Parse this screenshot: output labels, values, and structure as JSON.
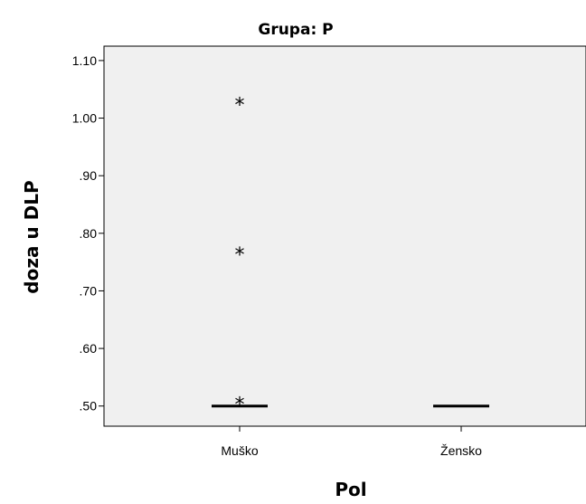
{
  "chart_data": {
    "type": "boxplot",
    "title": "Grupa: P",
    "xlabel": "Pol",
    "ylabel": "doza u DLP",
    "categories": [
      "Muško",
      "Žensko"
    ],
    "ylim": [
      0.465,
      1.125
    ],
    "yticks": [
      0.5,
      0.6,
      0.7,
      0.8,
      0.9,
      1.0,
      1.1
    ],
    "ytick_labels": [
      ".50",
      ".60",
      ".70",
      ".80",
      ".90",
      "1.00",
      "1.10"
    ],
    "boxes": [
      {
        "category": "Muško",
        "median": 0.5,
        "q1": 0.5,
        "q3": 0.5,
        "whisker_low": 0.5,
        "whisker_high": 0.5,
        "extremes": [
          1.03,
          0.77,
          0.51
        ]
      },
      {
        "category": "Žensko",
        "median": 0.5,
        "q1": 0.5,
        "q3": 0.5,
        "whisker_low": 0.5,
        "whisker_high": 0.5,
        "extremes": []
      }
    ],
    "extreme_marker": "*",
    "plot_background": "#f0f0f0",
    "grid": false,
    "legend": "none"
  }
}
